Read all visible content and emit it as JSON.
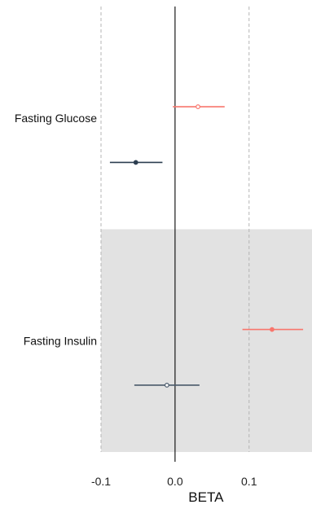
{
  "chart_data": {
    "type": "forest",
    "xlabel": "BETA",
    "xlim": [
      -0.1,
      0.185
    ],
    "ticks": [
      {
        "value": -0.1,
        "label": "-0.1"
      },
      {
        "value": 0.0,
        "label": "0.0"
      },
      {
        "value": 0.1,
        "label": "0.1"
      }
    ],
    "reference_line": 0.0,
    "grid": "dashed vertical lines at -0.1 and 0.1",
    "legend": "none",
    "categories": [
      {
        "label": "Fasting Glucose",
        "shaded": false,
        "estimates": [
          {
            "beta": 0.031,
            "ci_low": -0.003,
            "ci_high": 0.067,
            "color": "#f8766d",
            "marker": "open"
          },
          {
            "beta": -0.053,
            "ci_low": -0.088,
            "ci_high": -0.017,
            "color": "#2c3e50",
            "marker": "filled"
          }
        ]
      },
      {
        "label": "Fasting Insulin",
        "shaded": true,
        "estimates": [
          {
            "beta": 0.131,
            "ci_low": 0.091,
            "ci_high": 0.173,
            "color": "#f8766d",
            "marker": "filled"
          },
          {
            "beta": -0.011,
            "ci_low": -0.055,
            "ci_high": 0.033,
            "color": "#4a5a6b",
            "marker": "open"
          }
        ]
      }
    ],
    "colors": {
      "shade": "#e2e2e2",
      "grid": "#b5b5b5",
      "zero_line": "#1a1a1a"
    }
  }
}
